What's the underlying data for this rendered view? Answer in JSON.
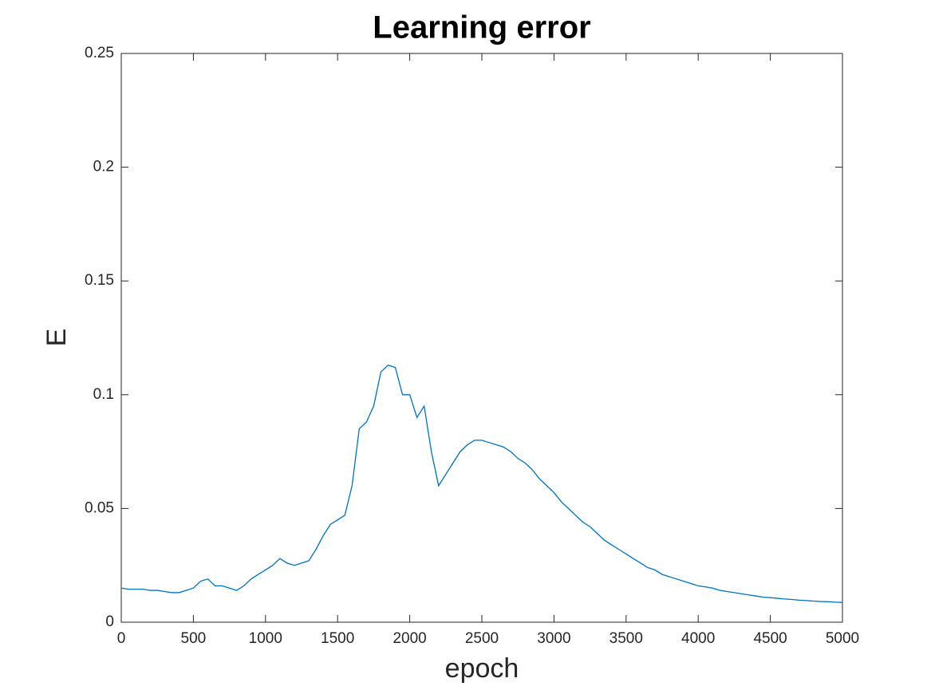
{
  "chart_data": {
    "type": "line",
    "title": "Learning error",
    "xlabel": "epoch",
    "ylabel": "E",
    "x": [
      0,
      50,
      100,
      150,
      200,
      250,
      300,
      350,
      400,
      450,
      500,
      550,
      600,
      650,
      700,
      750,
      800,
      850,
      900,
      950,
      1000,
      1050,
      1100,
      1150,
      1200,
      1250,
      1300,
      1350,
      1400,
      1450,
      1500,
      1550,
      1600,
      1650,
      1700,
      1750,
      1800,
      1850,
      1900,
      1950,
      2000,
      2050,
      2100,
      2150,
      2200,
      2250,
      2300,
      2350,
      2400,
      2450,
      2500,
      2550,
      2600,
      2650,
      2700,
      2750,
      2800,
      2850,
      2900,
      2950,
      3000,
      3050,
      3100,
      3150,
      3200,
      3250,
      3300,
      3350,
      3400,
      3450,
      3500,
      3550,
      3600,
      3650,
      3700,
      3750,
      3800,
      3850,
      3900,
      3950,
      4000,
      4050,
      4100,
      4150,
      4200,
      4250,
      4300,
      4350,
      4400,
      4450,
      4500,
      4550,
      4600,
      4650,
      4700,
      4750,
      4800,
      4850,
      4900,
      4950,
      5000
    ],
    "series": [
      {
        "name": "E",
        "color": "#0072bd",
        "values": [
          0.015,
          0.0145,
          0.0145,
          0.0145,
          0.014,
          0.014,
          0.0135,
          0.013,
          0.013,
          0.014,
          0.015,
          0.018,
          0.019,
          0.016,
          0.016,
          0.015,
          0.014,
          0.016,
          0.019,
          0.021,
          0.023,
          0.025,
          0.028,
          0.026,
          0.025,
          0.026,
          0.027,
          0.032,
          0.038,
          0.043,
          0.045,
          0.047,
          0.06,
          0.085,
          0.088,
          0.095,
          0.11,
          0.113,
          0.112,
          0.1,
          0.1,
          0.09,
          0.095,
          0.075,
          0.06,
          0.065,
          0.07,
          0.075,
          0.078,
          0.08,
          0.08,
          0.079,
          0.078,
          0.077,
          0.075,
          0.072,
          0.07,
          0.067,
          0.063,
          0.06,
          0.057,
          0.053,
          0.05,
          0.047,
          0.044,
          0.042,
          0.039,
          0.036,
          0.034,
          0.032,
          0.03,
          0.028,
          0.026,
          0.024,
          0.023,
          0.021,
          0.02,
          0.019,
          0.018,
          0.017,
          0.016,
          0.0155,
          0.015,
          0.014,
          0.0135,
          0.013,
          0.0125,
          0.012,
          0.0115,
          0.011,
          0.0108,
          0.0105,
          0.0102,
          0.01,
          0.0097,
          0.0095,
          0.0093,
          0.0091,
          0.009,
          0.0088,
          0.0087
        ]
      }
    ],
    "xlim": [
      0,
      5000
    ],
    "ylim": [
      0,
      0.25
    ],
    "xticks": [
      0,
      500,
      1000,
      1500,
      2000,
      2500,
      3000,
      3500,
      4000,
      4500,
      5000
    ],
    "yticks": [
      0,
      0.05,
      0.1,
      0.15,
      0.2,
      0.25
    ],
    "grid": false
  }
}
